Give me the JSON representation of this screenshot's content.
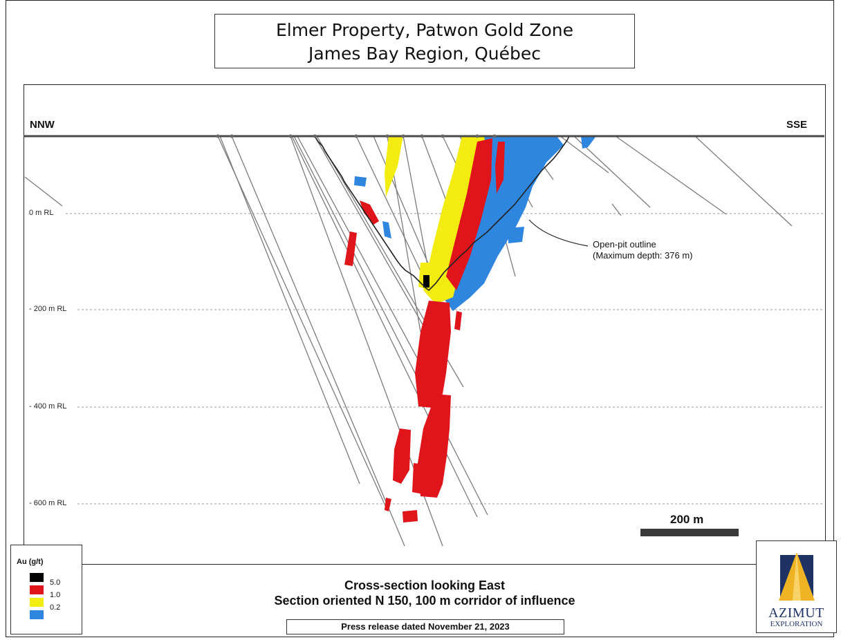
{
  "title": {
    "line1": "Elmer Property, Patwon Gold Zone",
    "line2": "James Bay Region, Québec"
  },
  "section": {
    "left_direction": "NNW",
    "right_direction": "SSE",
    "elevation_labels": [
      "0 m RL",
      "- 200 m RL",
      "- 400 m RL",
      "- 600 m RL"
    ],
    "pit_callout": {
      "line1": "Open-pit outline",
      "line2": "(Maximum depth: 376 m)"
    },
    "scale_label": "200 m"
  },
  "legend": {
    "title": "Au (g/t)",
    "entries": [
      {
        "label": "5.0",
        "color": "#000000"
      },
      {
        "label": "1.0",
        "color": "#e0141b"
      },
      {
        "label": "",
        "color": "#f2ec10"
      },
      {
        "label": "0.2",
        "color": "#2e86de"
      }
    ]
  },
  "colors": {
    "high_grade": "#000000",
    "grade_1": "#e0141b",
    "grade_05": "#f2ec10",
    "grade_02": "#2e86de",
    "drillhole": "#777777"
  },
  "footer": {
    "caption_line1": "Cross-section looking East",
    "caption_line2": "Section oriented N 150, 100 m corridor of influence",
    "press_release": "Press release dated November 21, 2023"
  },
  "logo": {
    "name": "AZIMUT",
    "subtitle": "EXPLORATION",
    "icon": "azimut-triangle-logo-icon"
  }
}
